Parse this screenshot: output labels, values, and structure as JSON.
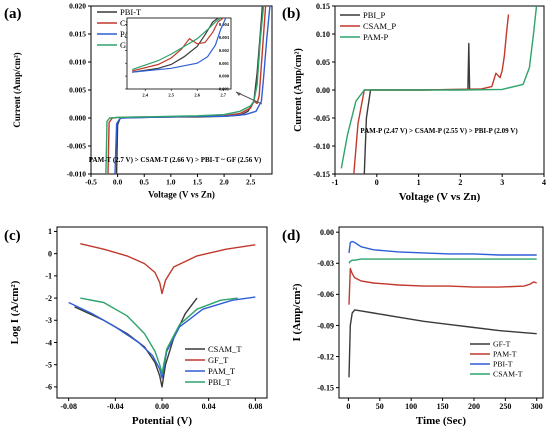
{
  "chart_data": [
    {
      "panel": "(a)",
      "type": "line",
      "xlabel": "Voltage (V vs Zn)",
      "ylabel": "Current (Amp/cm²)",
      "xlim": [
        -0.5,
        2.9
      ],
      "ylim": [
        -0.01,
        0.02
      ],
      "xticks": [
        -0.5,
        0.0,
        0.5,
        1.0,
        1.5,
        2.0,
        2.5
      ],
      "xtick_labels": [
        "-0.5",
        "0.0",
        "0.5",
        "1.0",
        "1.5",
        "2.0",
        "2.5"
      ],
      "yticks": [
        -0.01,
        -0.005,
        0.0,
        0.005,
        0.01,
        0.015,
        0.02
      ],
      "ytick_labels": [
        "-0.010",
        "-0.005",
        "0.000",
        "0.005",
        "0.010",
        "0.015",
        "0.020"
      ],
      "legend": "top-left",
      "annotation": "PAM-T (2.7 V) > CSAM-T (2.66 V) > PBI-T ~ GF (2.56 V)",
      "series": [
        {
          "name": "PBI-T",
          "color": "#3a3a3a",
          "x": [
            -0.02,
            0.0,
            0.05,
            0.5,
            1.0,
            1.5,
            2.0,
            2.3,
            2.45,
            2.56,
            2.62,
            2.68,
            2.72
          ],
          "y": [
            -0.01,
            -0.0012,
            0.0,
            0.0001,
            0.0002,
            0.0002,
            0.0003,
            0.0005,
            0.0012,
            0.003,
            0.008,
            0.015,
            0.02
          ]
        },
        {
          "name": "CSAM-T",
          "color": "#c0392b",
          "x": [
            -0.18,
            -0.16,
            -0.1,
            0.0,
            0.5,
            1.0,
            1.5,
            2.0,
            2.3,
            2.5,
            2.56,
            2.62,
            2.66,
            2.72,
            2.78
          ],
          "y": [
            -0.01,
            -0.0008,
            0.0,
            0.0001,
            0.0002,
            0.0002,
            0.0003,
            0.0004,
            0.0008,
            0.0018,
            0.003,
            0.0026,
            0.004,
            0.012,
            0.02
          ]
        },
        {
          "name": "PAM-T",
          "color": "#2f5fd6",
          "x": [
            -0.05,
            -0.02,
            0.05,
            0.5,
            1.0,
            1.5,
            2.0,
            2.4,
            2.6,
            2.7,
            2.74,
            2.8,
            2.86
          ],
          "y": [
            -0.01,
            -0.001,
            0.0,
            0.0001,
            0.0002,
            0.0003,
            0.0003,
            0.0006,
            0.0012,
            0.003,
            0.007,
            0.014,
            0.02
          ]
        },
        {
          "name": "GF-T",
          "color": "#2ea36b",
          "x": [
            -0.22,
            -0.2,
            -0.15,
            0.0,
            0.5,
            1.0,
            1.5,
            2.0,
            2.3,
            2.5,
            2.56,
            2.62,
            2.68,
            2.74
          ],
          "y": [
            -0.01,
            -0.0006,
            0.0,
            0.0001,
            0.0002,
            0.0003,
            0.0004,
            0.0006,
            0.0012,
            0.0022,
            0.003,
            0.006,
            0.014,
            0.02
          ]
        }
      ],
      "inset": {
        "xlim": [
          2.33,
          2.73
        ],
        "ylim": [
          -0.001,
          0.0045
        ],
        "xticks": [
          2.4,
          2.5,
          2.6,
          2.7
        ],
        "xtick_labels": [
          "2.4",
          "2.5",
          "2.6",
          "2.7"
        ],
        "yticks": [
          -0.001,
          0.0,
          0.001,
          0.002,
          0.003,
          0.004
        ],
        "ytick_labels": [
          "-0.001",
          "0.000",
          "0.001",
          "0.002",
          "0.003",
          "0.004"
        ],
        "series": [
          {
            "name": "PBI-T",
            "color": "#3a3a3a",
            "x": [
              2.35,
              2.45,
              2.5,
              2.55,
              2.6,
              2.63,
              2.66,
              2.68
            ],
            "y": [
              0.0003,
              0.0006,
              0.0009,
              0.0015,
              0.0023,
              0.0032,
              0.0042,
              0.0045
            ]
          },
          {
            "name": "CSAM-T",
            "color": "#c0392b",
            "x": [
              2.35,
              2.45,
              2.5,
              2.54,
              2.57,
              2.6,
              2.63,
              2.66,
              2.68,
              2.7
            ],
            "y": [
              0.0004,
              0.0009,
              0.0014,
              0.0021,
              0.0029,
              0.0025,
              0.0026,
              0.0034,
              0.0042,
              0.0045
            ]
          },
          {
            "name": "PAM-T",
            "color": "#2f5fd6",
            "x": [
              2.35,
              2.5,
              2.6,
              2.64,
              2.67,
              2.69,
              2.71
            ],
            "y": [
              0.0003,
              0.0006,
              0.001,
              0.0015,
              0.0024,
              0.0036,
              0.0045
            ]
          },
          {
            "name": "GF-T",
            "color": "#2ea36b",
            "x": [
              2.35,
              2.45,
              2.5,
              2.55,
              2.6,
              2.64,
              2.67,
              2.69
            ],
            "y": [
              0.0005,
              0.0012,
              0.0017,
              0.0023,
              0.0029,
              0.0036,
              0.0042,
              0.0045
            ]
          }
        ]
      }
    },
    {
      "panel": "(b)",
      "type": "line",
      "xlabel": "Voltage (V vs Zn)",
      "ylabel": "Current (Amp/cm²)",
      "xlim": [
        -1,
        4
      ],
      "ylim": [
        -0.15,
        0.15
      ],
      "xticks": [
        -1,
        0,
        1,
        2,
        3,
        4
      ],
      "xtick_labels": [
        "-1",
        "0",
        "1",
        "2",
        "3",
        "4"
      ],
      "yticks": [
        -0.15,
        -0.1,
        -0.05,
        0.0,
        0.05,
        0.1,
        0.15
      ],
      "ytick_labels": [
        "-0.15",
        "-0.10",
        "-0.05",
        "0.00",
        "0.05",
        "0.10",
        "0.15"
      ],
      "legend": "top-left",
      "annotation": "PAM-P (2.47 V) > CSAM-P (2.55 V) > PBI-P (2.09 V)",
      "series": [
        {
          "name": "PBI_P",
          "color": "#3a3a3a",
          "x": [
            -0.3,
            -0.25,
            -0.15,
            0.0,
            1.0,
            2.0,
            2.15,
            2.18,
            2.2,
            2.22,
            2.25
          ],
          "y": [
            -0.15,
            -0.05,
            0.0,
            0.0,
            0.0,
            0.001,
            0.001,
            0.002,
            0.083,
            0.002,
            0.002
          ]
        },
        {
          "name": "CSAM_P",
          "color": "#c0392b",
          "x": [
            -0.55,
            -0.45,
            -0.3,
            0.0,
            1.0,
            2.0,
            2.5,
            2.75,
            2.85,
            2.95,
            3.0,
            3.05,
            3.1,
            3.15
          ],
          "y": [
            -0.15,
            -0.06,
            0.0,
            0.0,
            0.0,
            0.001,
            0.002,
            0.006,
            0.03,
            0.022,
            0.035,
            0.06,
            0.1,
            0.135
          ]
        },
        {
          "name": "PAM-P",
          "color": "#2ea36b",
          "x": [
            -0.85,
            -0.7,
            -0.5,
            -0.3,
            0.0,
            1.0,
            2.0,
            3.0,
            3.5,
            3.65,
            3.75,
            3.82
          ],
          "y": [
            -0.14,
            -0.08,
            -0.02,
            0.0,
            0.0,
            0.0,
            0.0,
            0.001,
            0.01,
            0.04,
            0.1,
            0.15
          ]
        }
      ]
    },
    {
      "panel": "(c)",
      "type": "line",
      "xlabel": "Potential (V)",
      "ylabel": "Log I (A/cm²)",
      "xlim": [
        -0.09,
        0.09
      ],
      "ylim": [
        -6.5,
        1.2
      ],
      "xticks": [
        -0.08,
        -0.04,
        0.0,
        0.04,
        0.08
      ],
      "xtick_labels": [
        "-0.08",
        "-0.04",
        "0.00",
        "0.04",
        "0.08"
      ],
      "yticks": [
        -6,
        -5,
        -4,
        -3,
        -2,
        -1,
        0,
        1
      ],
      "ytick_labels": [
        "-6",
        "-5",
        "-4",
        "-3",
        "-2",
        "-1",
        "0",
        "1"
      ],
      "legend": "bottom-right",
      "series": [
        {
          "name": "CSAM_T",
          "color": "#3a3a3a",
          "x": [
            -0.075,
            -0.05,
            -0.03,
            -0.015,
            -0.006,
            -0.002,
            0.0,
            0.003,
            0.01,
            0.02,
            0.03
          ],
          "y": [
            -2.4,
            -3.0,
            -3.6,
            -4.2,
            -4.9,
            -5.5,
            -6.0,
            -5.0,
            -3.8,
            -2.7,
            -2.0
          ]
        },
        {
          "name": "GF_T",
          "color": "#c0392b",
          "x": [
            -0.07,
            -0.05,
            -0.03,
            -0.015,
            -0.006,
            -0.002,
            0.0,
            0.003,
            0.01,
            0.03,
            0.055,
            0.08
          ],
          "y": [
            0.45,
            0.2,
            -0.1,
            -0.45,
            -0.85,
            -1.3,
            -1.8,
            -1.2,
            -0.6,
            -0.1,
            0.2,
            0.4
          ]
        },
        {
          "name": "PAM_T",
          "color": "#2f5fd6",
          "x": [
            -0.08,
            -0.06,
            -0.04,
            -0.02,
            -0.008,
            -0.002,
            0.0,
            0.004,
            0.015,
            0.035,
            0.06,
            0.08
          ],
          "y": [
            -2.2,
            -2.7,
            -3.3,
            -4.0,
            -4.6,
            -5.2,
            -5.6,
            -4.4,
            -3.3,
            -2.5,
            -2.1,
            -1.95
          ]
        },
        {
          "name": "PBI_T",
          "color": "#2ea36b",
          "x": [
            -0.07,
            -0.05,
            -0.03,
            -0.015,
            -0.006,
            -0.002,
            0.0,
            0.004,
            0.015,
            0.03,
            0.05,
            0.065
          ],
          "y": [
            -2.0,
            -2.2,
            -2.8,
            -3.6,
            -4.4,
            -5.0,
            -5.4,
            -4.3,
            -3.2,
            -2.5,
            -2.1,
            -2.0
          ]
        }
      ]
    },
    {
      "panel": "(d)",
      "type": "line",
      "xlabel": "Time (Sec)",
      "ylabel": "I (Amp/cm²)",
      "xlim": [
        -15,
        310
      ],
      "ylim": [
        -0.16,
        0.005
      ],
      "xticks": [
        0,
        50,
        100,
        150,
        200,
        250,
        300
      ],
      "xtick_labels": [
        "0",
        "50",
        "100",
        "150",
        "200",
        "250",
        "300"
      ],
      "yticks": [
        -0.15,
        -0.12,
        -0.09,
        -0.06,
        -0.03,
        0.0
      ],
      "ytick_labels": [
        "-0.15",
        "-0.12",
        "-0.09",
        "-0.06",
        "-0.03",
        "0.00"
      ],
      "legend": "bottom-right",
      "series": [
        {
          "name": "GF-T",
          "color": "#3a3a3a",
          "x": [
            1,
            3,
            6,
            10,
            20,
            40,
            80,
            120,
            160,
            200,
            240,
            280,
            300
          ],
          "y": [
            -0.14,
            -0.09,
            -0.078,
            -0.075,
            -0.076,
            -0.078,
            -0.082,
            -0.086,
            -0.089,
            -0.092,
            -0.095,
            -0.097,
            -0.098
          ]
        },
        {
          "name": "PAM-T",
          "color": "#c0392b",
          "x": [
            1,
            3,
            6,
            10,
            20,
            40,
            80,
            120,
            160,
            200,
            240,
            280,
            290,
            295,
            300
          ],
          "y": [
            -0.07,
            -0.035,
            -0.04,
            -0.044,
            -0.047,
            -0.049,
            -0.051,
            -0.052,
            -0.052,
            -0.053,
            -0.053,
            -0.052,
            -0.05,
            -0.048,
            -0.049
          ]
        },
        {
          "name": "PBI-T",
          "color": "#2f5fd6",
          "x": [
            1,
            3,
            6,
            10,
            20,
            40,
            80,
            120,
            160,
            200,
            240,
            280,
            300
          ],
          "y": [
            -0.02,
            -0.01,
            -0.009,
            -0.01,
            -0.014,
            -0.017,
            -0.019,
            -0.02,
            -0.021,
            -0.021,
            -0.022,
            -0.022,
            -0.022
          ]
        },
        {
          "name": "CSAM-T",
          "color": "#2ea36b",
          "x": [
            1,
            3,
            6,
            10,
            20,
            40,
            80,
            120,
            160,
            200,
            240,
            280,
            300
          ],
          "y": [
            -0.03,
            -0.028,
            -0.027,
            -0.027,
            -0.026,
            -0.026,
            -0.026,
            -0.026,
            -0.026,
            -0.026,
            -0.026,
            -0.026,
            -0.026
          ]
        }
      ]
    }
  ]
}
